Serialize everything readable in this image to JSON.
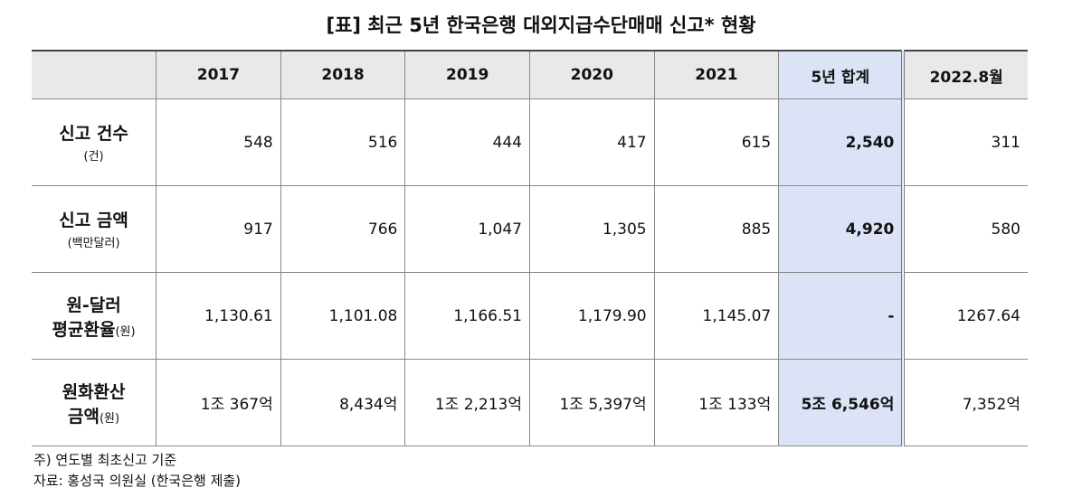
{
  "title": "[표] 최근 5년 한국은행 대외지급수단매매 신고* 현황",
  "table": {
    "header": [
      "2017",
      "2018",
      "2019",
      "2020",
      "2021",
      "5년 합계",
      "2022.8월"
    ],
    "rows": [
      {
        "label": [
          [
            "신고 건수"
          ],
          [
            "(건)"
          ]
        ],
        "cells": [
          "548",
          "516",
          "444",
          "417",
          "615",
          "2,540",
          "311"
        ]
      },
      {
        "label": [
          [
            "신고 금액"
          ],
          [
            "(백만달러)"
          ]
        ],
        "cells": [
          "917",
          "766",
          "1,047",
          "1,305",
          "885",
          "4,920",
          "580"
        ]
      },
      {
        "label": [
          [
            "원-달러"
          ],
          [
            "평균환율",
            "(원)"
          ]
        ],
        "cells": [
          "1,130.61",
          "1,101.08",
          "1,166.51",
          "1,179.90",
          "1,145.07",
          "-",
          "1267.64"
        ]
      },
      {
        "label": [
          [
            "원화환산"
          ],
          [
            "금액",
            "(원)"
          ]
        ],
        "cells": [
          "1조 367억",
          "8,434억",
          "1조 2,213억",
          "1조 5,397억",
          "1조 133억",
          "5조 6,546억",
          "7,352억"
        ]
      }
    ]
  },
  "notes": [
    "주) 연도별 최초신고 기준",
    "자료: 홍성국 의원실 (한국은행 제출)"
  ]
}
